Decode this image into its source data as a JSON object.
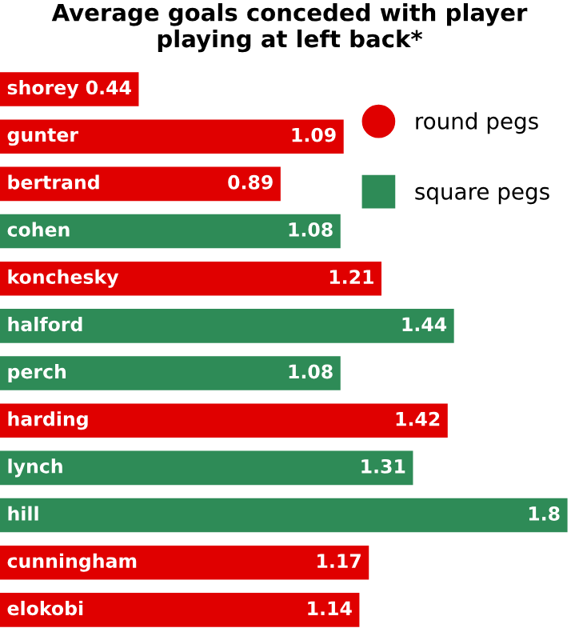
{
  "chart_data": {
    "type": "bar",
    "orientation": "horizontal",
    "title": "Average goals conceded with player playing at left back*",
    "categories": [
      "shorey",
      "gunter",
      "bertrand",
      "cohen",
      "konchesky",
      "halford",
      "perch",
      "harding",
      "lynch",
      "hill",
      "cunningham",
      "elokobi"
    ],
    "series": [
      {
        "name": "round pegs",
        "color": "#e00000",
        "values": [
          0.44,
          1.09,
          0.89,
          null,
          1.21,
          null,
          null,
          1.42,
          null,
          null,
          1.17,
          1.14
        ]
      },
      {
        "name": "square pegs",
        "color": "#2e8b57",
        "values": [
          null,
          null,
          null,
          1.08,
          null,
          1.44,
          1.08,
          null,
          1.31,
          1.8,
          null,
          null
        ]
      }
    ],
    "data_labels": true,
    "legend": "right",
    "marker": "circle"
  }
}
